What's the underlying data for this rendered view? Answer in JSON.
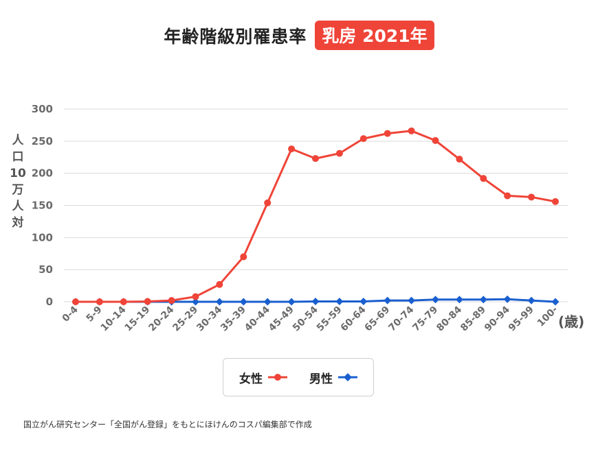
{
  "header": {
    "title": "年齢階級別罹患率",
    "badge": "乳房 2021年"
  },
  "chart_data": {
    "type": "line",
    "categories": [
      "0-4",
      "5-9",
      "10-14",
      "15-19",
      "20-24",
      "25-29",
      "30-34",
      "35-39",
      "40-44",
      "45-49",
      "50-54",
      "55-59",
      "60-64",
      "65-69",
      "70-74",
      "75-79",
      "80-84",
      "85-89",
      "90-94",
      "95-99",
      "100-"
    ],
    "series": [
      {
        "name": "女性",
        "color": "#ef4438",
        "marker": "circle",
        "values": [
          0,
          0,
          0,
          0.5,
          2,
          8,
          27,
          70,
          154,
          238,
          223,
          231,
          254,
          262,
          266,
          251,
          222,
          192,
          165,
          163,
          156
        ]
      },
      {
        "name": "男性",
        "color": "#1a5fcf",
        "marker": "diamond",
        "values": [
          0,
          0,
          0,
          0,
          0,
          0,
          0,
          0,
          0,
          0,
          0.5,
          0.5,
          0.5,
          2,
          2,
          3.5,
          3.5,
          3.5,
          4,
          2,
          0
        ]
      }
    ],
    "ylabel": "人口10万人対",
    "ylabel_chars": [
      "人",
      "口",
      "10",
      "万",
      "人",
      "対"
    ],
    "yticks": [
      0,
      50,
      100,
      150,
      200,
      250,
      300
    ],
    "ylim": [
      0,
      300
    ],
    "x_unit": "(歳)",
    "grid": true,
    "legend_position": "bottom-center"
  },
  "legend": {
    "female": "女性",
    "male": "男性"
  },
  "footer": {
    "source": "国立がん研究センター「全国がん登録」をもとにほけんのコスパ編集部で作成"
  },
  "colors": {
    "accent": "#ef4438",
    "female": "#ef4438",
    "male": "#1a5fcf",
    "grid": "#d9d9d9"
  }
}
